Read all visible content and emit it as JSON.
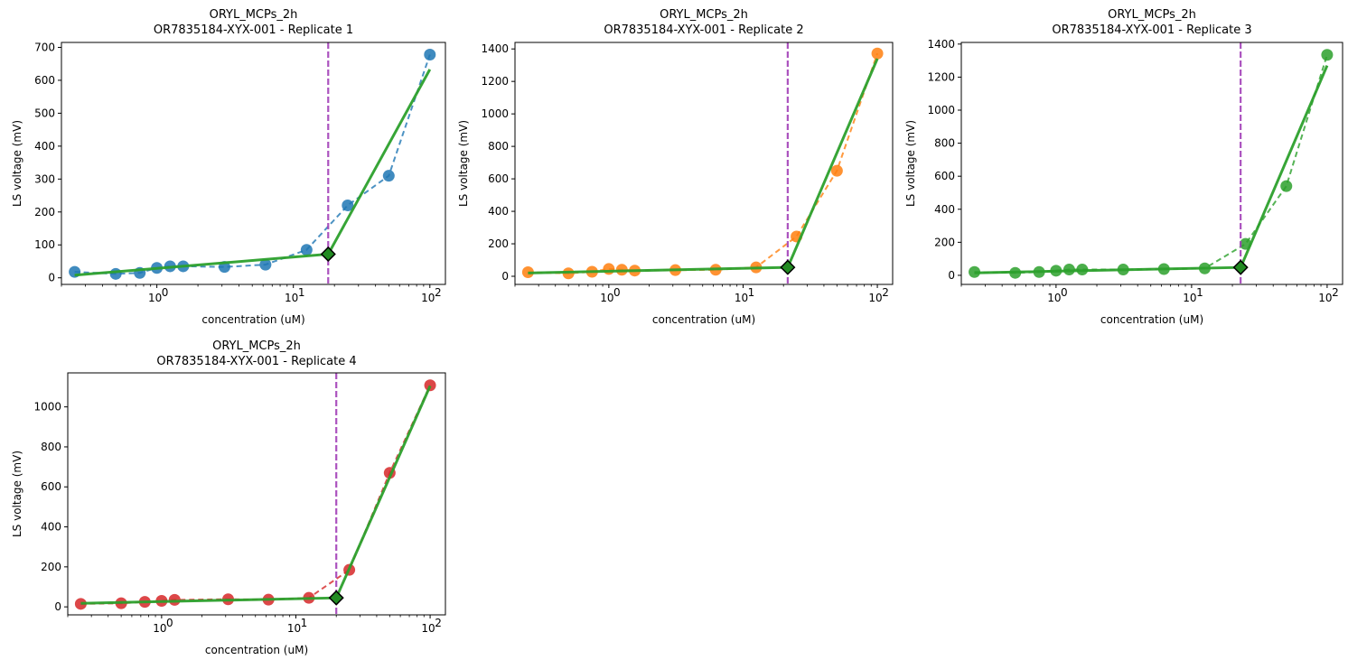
{
  "chart_data": [
    {
      "type": "scatter",
      "title": "ORYL_MCPs_2h",
      "subtitle": "OR7835184-XYX-001 - Replicate 1",
      "xlabel": "concentration (uM)",
      "ylabel": "LS voltage (mV)",
      "xscale": "log",
      "xlim": [
        0.2,
        130
      ],
      "ylim": [
        -20,
        715
      ],
      "yticks": [
        0,
        100,
        200,
        300,
        400,
        500,
        600,
        700
      ],
      "xticks": [
        1,
        10,
        100
      ],
      "xtick_labels": [
        {
          "base": "10",
          "exp": "0"
        },
        {
          "base": "10",
          "exp": "1"
        },
        {
          "base": "10",
          "exp": "2"
        }
      ],
      "color": "#1f77b4",
      "series": [
        {
          "x": [
            0.25,
            0.5,
            0.75,
            1.0,
            1.25,
            1.56,
            3.13,
            6.25,
            12.5,
            25,
            50,
            100
          ],
          "y": [
            18,
            12,
            15,
            30,
            35,
            35,
            33,
            40,
            85,
            220,
            310,
            678
          ]
        }
      ],
      "fit_line": {
        "x": [
          0.25,
          18.0,
          100
        ],
        "y": [
          8,
          72,
          633
        ]
      },
      "threshold_x": 18.0,
      "threshold_y": 72,
      "grid": false
    },
    {
      "type": "scatter",
      "title": "ORYL_MCPs_2h",
      "subtitle": "OR7835184-XYX-001 - Replicate 2",
      "xlabel": "concentration (uM)",
      "ylabel": "LS voltage (mV)",
      "xscale": "log",
      "xlim": [
        0.2,
        130
      ],
      "ylim": [
        -50,
        1440
      ],
      "yticks": [
        0,
        200,
        400,
        600,
        800,
        1000,
        1200,
        1400
      ],
      "xticks": [
        1,
        10,
        100
      ],
      "xtick_labels": [
        {
          "base": "10",
          "exp": "0"
        },
        {
          "base": "10",
          "exp": "1"
        },
        {
          "base": "10",
          "exp": "2"
        }
      ],
      "color": "#ff7f0e",
      "series": [
        {
          "x": [
            0.25,
            0.5,
            0.75,
            1.0,
            1.25,
            1.56,
            3.13,
            6.25,
            12.5,
            25,
            50,
            100
          ],
          "y": [
            25,
            18,
            28,
            45,
            40,
            35,
            38,
            40,
            55,
            245,
            650,
            1372
          ]
        }
      ],
      "fit_line": {
        "x": [
          0.25,
          21.5,
          100
        ],
        "y": [
          20,
          55,
          1340
        ]
      },
      "threshold_x": 21.5,
      "threshold_y": 55,
      "grid": false
    },
    {
      "type": "scatter",
      "title": "ORYL_MCPs_2h",
      "subtitle": "OR7835184-XYX-001 - Replicate 3",
      "xlabel": "concentration (uM)",
      "ylabel": "LS voltage (mV)",
      "xscale": "log",
      "xlim": [
        0.2,
        130
      ],
      "ylim": [
        -55,
        1410
      ],
      "yticks": [
        0,
        200,
        400,
        600,
        800,
        1000,
        1200,
        1400
      ],
      "xticks": [
        1,
        10,
        100
      ],
      "xtick_labels": [
        {
          "base": "10",
          "exp": "0"
        },
        {
          "base": "10",
          "exp": "1"
        },
        {
          "base": "10",
          "exp": "2"
        }
      ],
      "color": "#2ca02c",
      "series": [
        {
          "x": [
            0.25,
            0.5,
            0.75,
            1.0,
            1.25,
            1.56,
            3.13,
            6.25,
            12.5,
            25,
            50,
            100
          ],
          "y": [
            20,
            15,
            20,
            28,
            35,
            35,
            35,
            38,
            42,
            190,
            540,
            1335
          ]
        }
      ],
      "fit_line": {
        "x": [
          0.25,
          23.0,
          100
        ],
        "y": [
          15,
          48,
          1270
        ]
      },
      "threshold_x": 23.0,
      "threshold_y": 48,
      "grid": false
    },
    {
      "type": "scatter",
      "title": "ORYL_MCPs_2h",
      "subtitle": "OR7835184-XYX-001 - Replicate 4",
      "xlabel": "concentration (uM)",
      "ylabel": "LS voltage (mV)",
      "xscale": "log",
      "xlim": [
        0.2,
        130
      ],
      "ylim": [
        -40,
        1170
      ],
      "yticks": [
        0,
        200,
        400,
        600,
        800,
        1000
      ],
      "xticks": [
        1,
        10,
        100
      ],
      "xtick_labels": [
        {
          "base": "10",
          "exp": "0"
        },
        {
          "base": "10",
          "exp": "1"
        },
        {
          "base": "10",
          "exp": "2"
        }
      ],
      "color": "#d62728",
      "series": [
        {
          "x": [
            0.25,
            0.5,
            0.75,
            1.0,
            1.25,
            3.13,
            6.25,
            12.5,
            25,
            50,
            100
          ],
          "y": [
            15,
            18,
            25,
            30,
            35,
            38,
            36,
            45,
            185,
            670,
            1108
          ]
        }
      ],
      "fit_line": {
        "x": [
          0.25,
          20.0,
          100
        ],
        "y": [
          18,
          45,
          1105
        ]
      },
      "threshold_x": 20.0,
      "threshold_y": 45,
      "grid": false
    }
  ],
  "colors": {
    "fit_line": "#2ca02c",
    "threshold_line": "#a240b8",
    "marker_diamond": "#228b22"
  }
}
